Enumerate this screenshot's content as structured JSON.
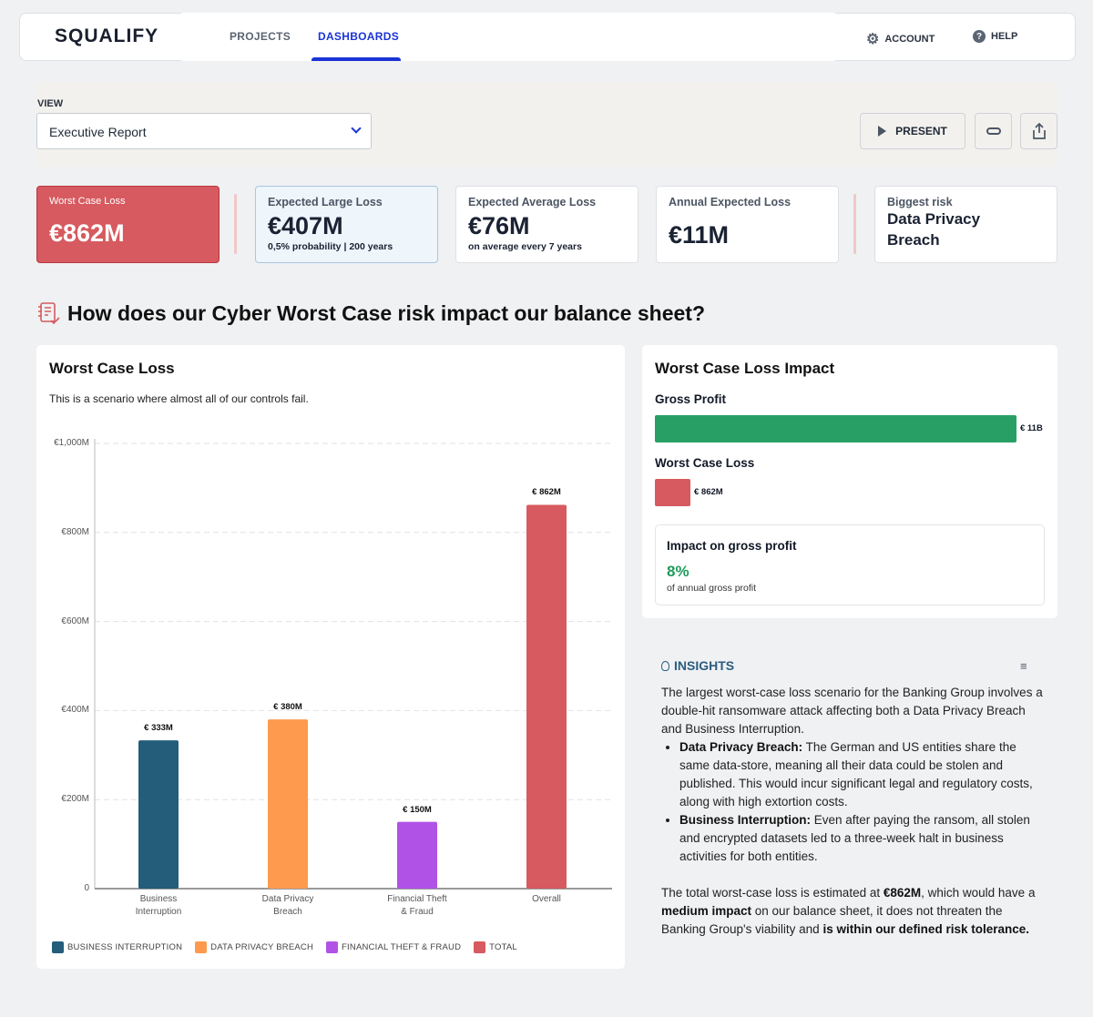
{
  "header": {
    "logo": "SQUALIFY",
    "tabs": [
      {
        "label": "PROJECTS",
        "active": false
      },
      {
        "label": "DASHBOARDS",
        "active": true
      }
    ],
    "account": "ACCOUNT",
    "help": "HELP"
  },
  "view": {
    "label": "VIEW",
    "selected": "Executive Report",
    "present": "PRESENT"
  },
  "kpis": [
    {
      "label": "Worst Case Loss",
      "value": "€862M"
    },
    {
      "label": "Expected Large Loss",
      "value": "€407M",
      "sub_a": "0,5% probability",
      "sub_b": "200 years"
    },
    {
      "label": "Expected Average Loss",
      "value": "€76M",
      "sub": "on average every 7 years"
    },
    {
      "label": "Annual Expected Loss",
      "value": "€11M"
    },
    {
      "label": "Biggest risk",
      "value": "Data Privacy Breach"
    }
  ],
  "section_title": "How does our Cyber Worst Case risk impact our balance sheet?",
  "chart_panel": {
    "title": "Worst Case Loss",
    "description": "This is a scenario where almost all of our controls fail."
  },
  "chart_data": {
    "type": "bar",
    "categories": [
      "Business\nInterruption",
      "Data Privacy\nBreach",
      "Financial Theft\n& Fraud",
      "Overall"
    ],
    "values": [
      333,
      380,
      150,
      862
    ],
    "value_labels": [
      "€ 333M",
      "€ 380M",
      "€ 150M",
      "€ 862M"
    ],
    "colors": [
      "#235d7a",
      "#fd9a4e",
      "#b052e6",
      "#d65a5f"
    ],
    "ylim": [
      0,
      1000
    ],
    "y_ticks": [
      0,
      200,
      400,
      600,
      800,
      1000
    ],
    "y_tick_labels": [
      "0",
      "€200M",
      "€400M",
      "€600M",
      "€800M",
      "€1,000M"
    ],
    "grid": true,
    "legend": [
      "BUSINESS INTERRUPTION",
      "DATA PRIVACY BREACH",
      "FINANCIAL THEFT & FRAUD",
      "TOTAL"
    ],
    "legend_position": "bottom-left"
  },
  "impact": {
    "title": "Worst Case Loss Impact",
    "gross_label": "Gross Profit",
    "gross_value": "€ 11B",
    "gross_color": "#28a065",
    "loss_label": "Worst Case Loss",
    "loss_value": "€ 862M",
    "loss_color": "#d65a5f",
    "box_title": "Impact on gross profit",
    "percent": "8%",
    "percent_caption": "of annual gross profit"
  },
  "insights": {
    "title": "INSIGHTS",
    "intro": "The largest worst-case loss scenario for the Banking Group involves a double-hit ransomware attack affecting both a Data Privacy Breach and Business Interruption.",
    "bullets": [
      {
        "bold": "Data Privacy Breach:",
        "text": " The German and US entities share the same data-store, meaning all their data could be stolen and published. This would incur significant legal and regulatory costs, along with high extortion costs."
      },
      {
        "bold": "Business Interruption:",
        "text": " Even after paying the ransom, all stolen and encrypted datasets led to a three-week halt in business activities for both entities."
      }
    ],
    "c1": "The total worst-case loss is estimated at ",
    "c2": "€862M",
    "c3": ", which would have a ",
    "c4": "medium impact",
    "c5": " on our balance sheet, it does not threaten the Banking Group's viability and ",
    "c6": "is within our defined risk tolerance."
  }
}
